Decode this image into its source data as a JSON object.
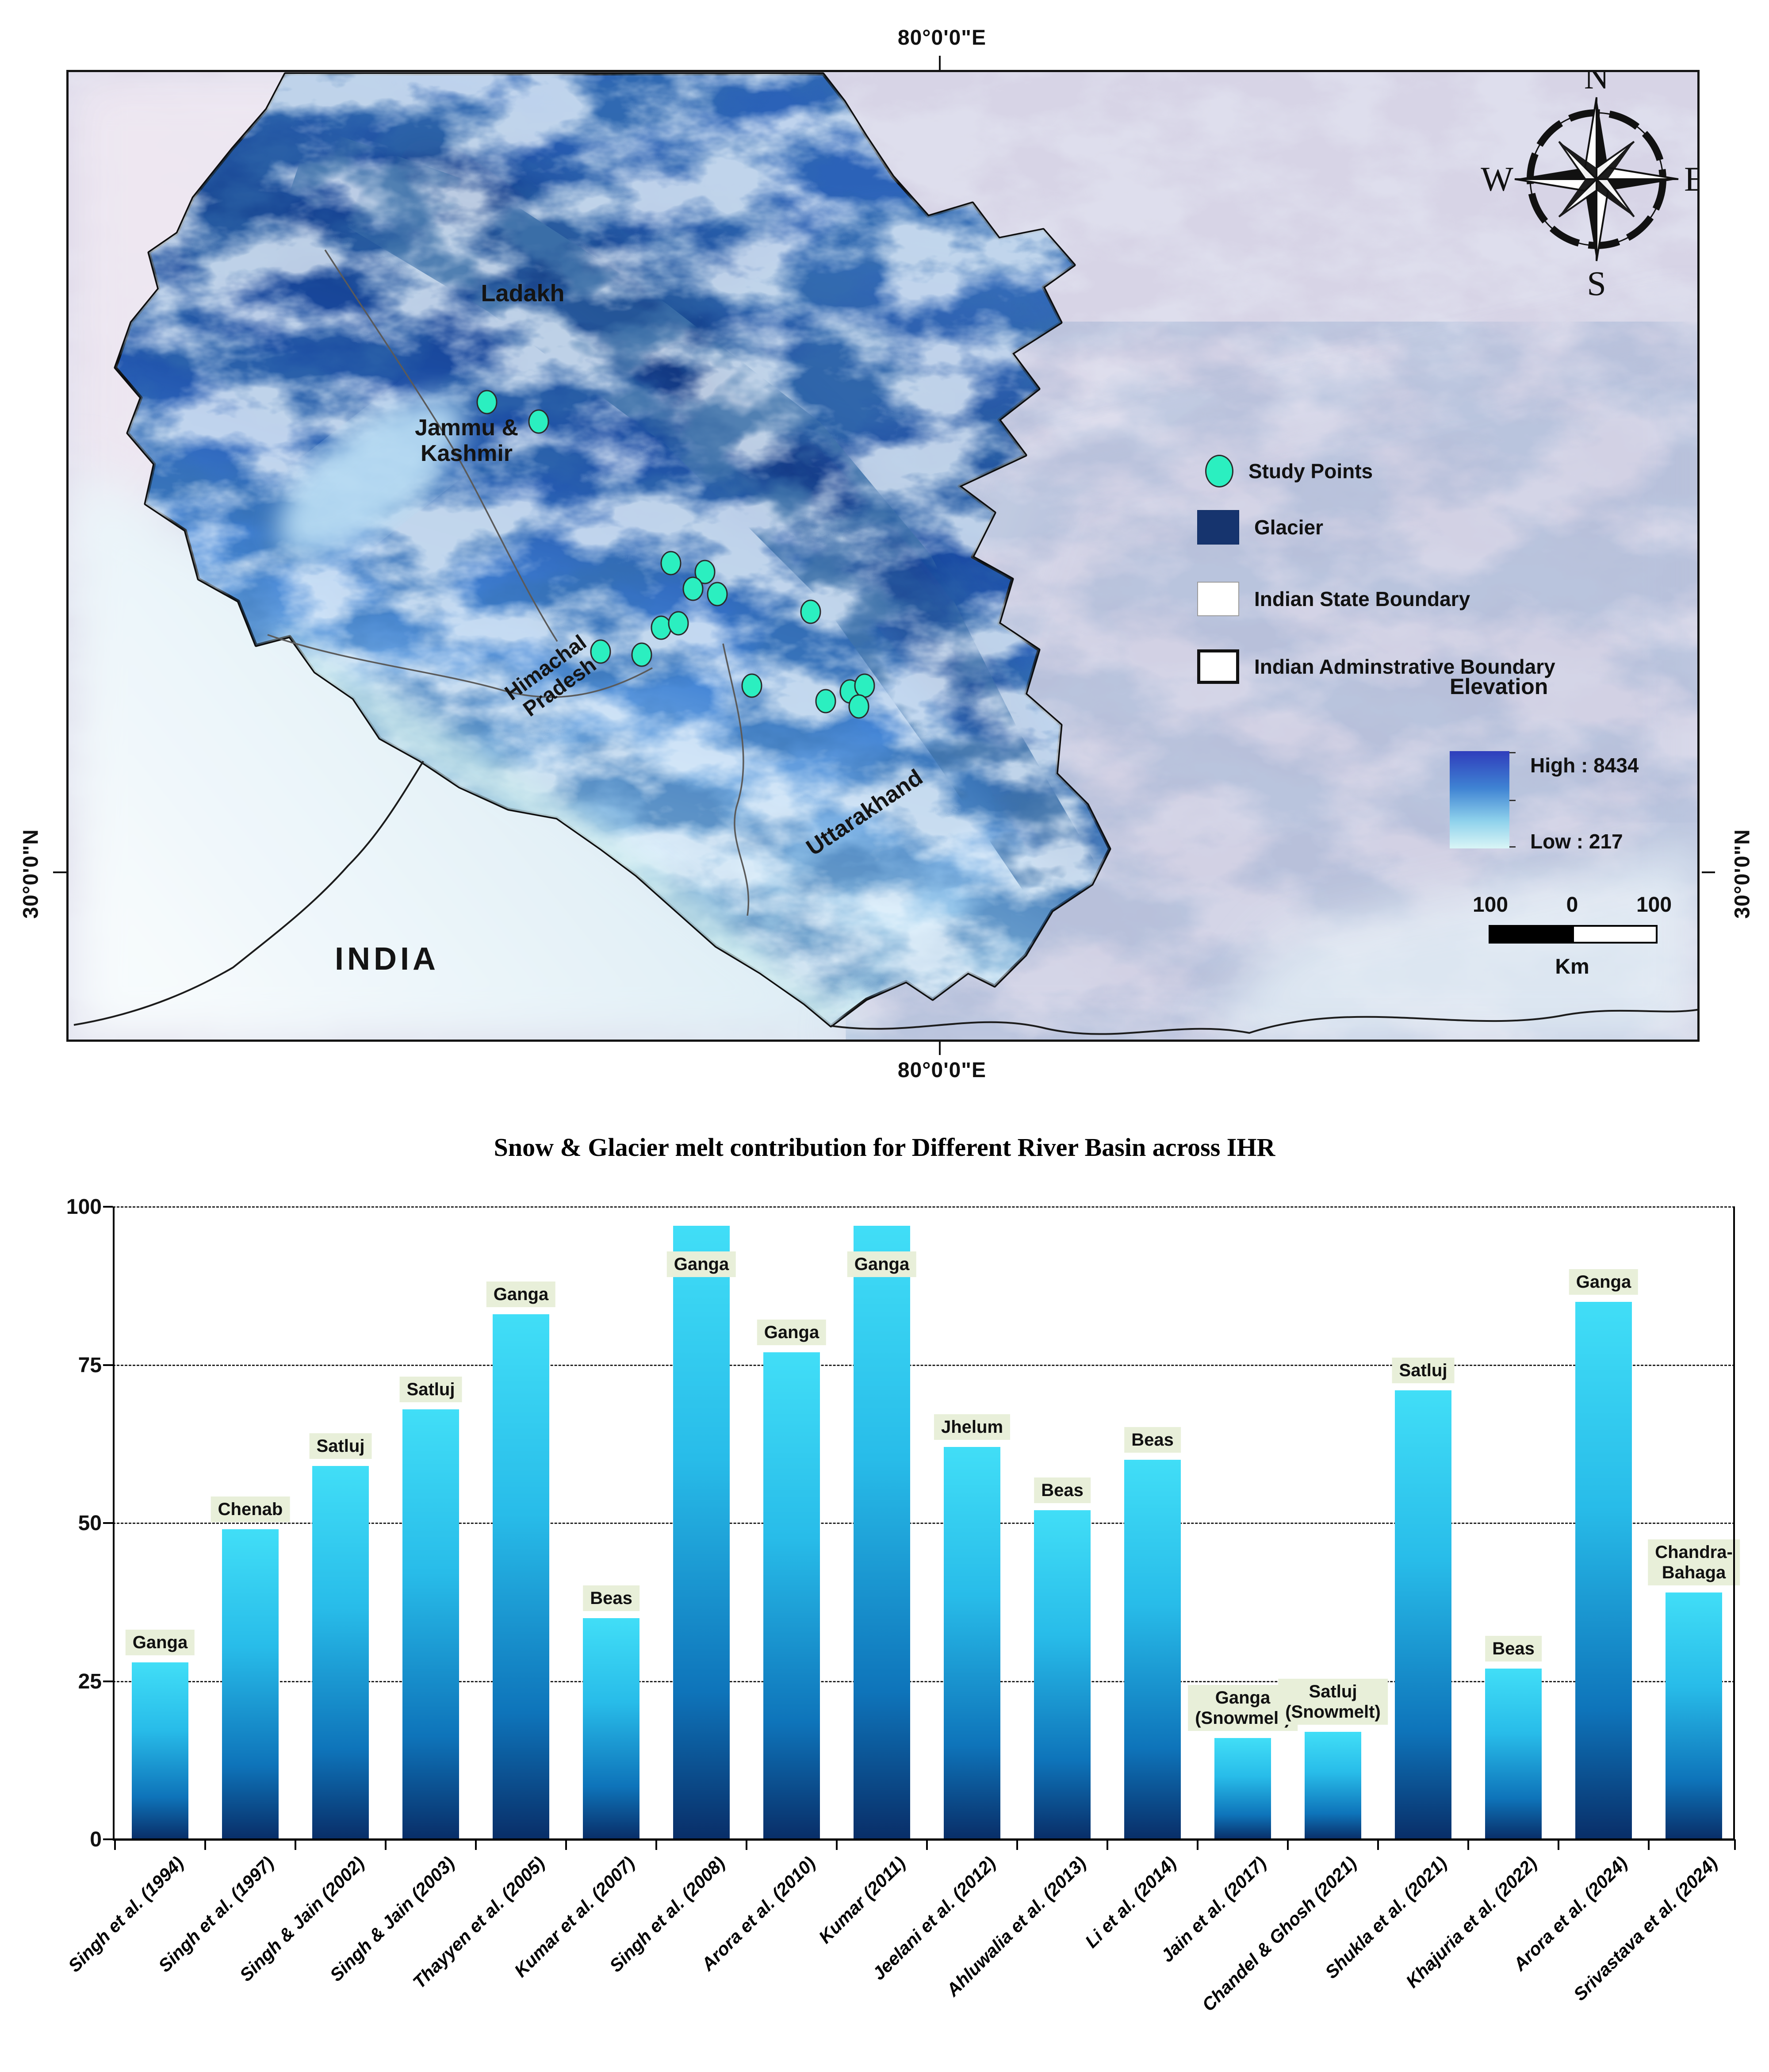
{
  "map": {
    "top_coordinate": "80°0'0\"E",
    "bottom_coordinate": "80°0'0\"E",
    "left_coordinate": "30°0'0\"N",
    "right_coordinate": "30°0'0\"N",
    "compass": {
      "n": "N",
      "e": "E",
      "s": "S",
      "w": "W"
    },
    "region_labels": {
      "ladakh": "Ladakh",
      "jammu_kashmir": "Jammu &\nKashmir",
      "himachal_pradesh": "Himachal\nPradesh",
      "uttarakhand": "Uttarakhand",
      "india": "INDIA"
    },
    "legend": {
      "items": [
        {
          "label": "Study Points",
          "marker": "circle",
          "color": "#2BEFC0"
        },
        {
          "label": "Glacier",
          "marker": "square",
          "color": "#16346E"
        },
        {
          "label": "Indian State Boundary",
          "marker": "square-outline-thin",
          "color": "#FFFFFF"
        },
        {
          "label": "Indian Adminstrative Boundary",
          "marker": "square-outline-thick",
          "color": "#FFFFFF"
        }
      ],
      "elevation": {
        "title": "Elevation",
        "high_label": "High : 8434",
        "low_label": "Low : 217"
      },
      "scalebar": {
        "left": "100",
        "middle": "0",
        "right": "100",
        "unit": "Km"
      }
    },
    "study_point_color": "#2BEFC0",
    "study_points": [
      [
        1096,
        904
      ],
      [
        1213,
        948
      ],
      [
        1512,
        1268
      ],
      [
        1589,
        1288
      ],
      [
        1562,
        1326
      ],
      [
        1617,
        1338
      ],
      [
        1828,
        1378
      ],
      [
        1490,
        1414
      ],
      [
        1529,
        1404
      ],
      [
        1353,
        1468
      ],
      [
        1446,
        1475
      ],
      [
        1695,
        1545
      ],
      [
        1862,
        1580
      ],
      [
        1917,
        1558
      ],
      [
        1950,
        1545
      ],
      [
        1937,
        1592
      ]
    ]
  },
  "chart_data": {
    "type": "bar",
    "title": "Snow & Glacier melt contribution for Different River Basin across IHR",
    "categories": [
      "Singh et al.  (1994)",
      "Singh et al. (1997)",
      "Singh & Jain (2002)",
      "Singh & Jain (2003)",
      "Thayyen et al. (2005)",
      "Kumar et al. (2007)",
      "Singh et al. (2008)",
      "Arora et al. (2010)",
      "Kumar (2011)",
      "Jeelani et al. (2012)",
      "Ahluwalia et al. (2013)",
      "Li et al.  (2014)",
      "Jain et al. (2017)",
      "Chandel & Ghosh (2021)",
      "Shukla et al. (2021)",
      "Khajuria et al. (2022)",
      "Arora et al. (2024)",
      "Srivastava et al. (2024)"
    ],
    "series": [
      {
        "name": "Snow & glacier melt contribution (%)",
        "values": [
          28,
          49,
          59,
          68,
          83,
          35,
          97,
          77,
          97,
          62,
          52,
          60,
          16,
          17,
          71,
          27,
          85,
          39
        ]
      }
    ],
    "bar_labels": [
      "Ganga",
      "Chenab",
      "Satluj",
      "Satluj",
      "Ganga",
      "Beas",
      "Ganga",
      "Ganga",
      "Ganga",
      "Jhelum",
      "Beas",
      "Beas",
      "Ganga\n(Snowmelt)",
      "Satluj\n(Snowmelt)",
      "Satluj",
      "Beas",
      "Ganga",
      "Chandra-\nBahaga"
    ],
    "xlabel": "",
    "ylabel": "",
    "yticks": [
      0,
      25,
      50,
      75,
      100
    ],
    "ylim": [
      0,
      100
    ],
    "grid": "dashed-horizontal",
    "legend_position": "none",
    "bar_top_color": "#41DEF7",
    "bar_bottom_color": "#092E68",
    "label_bg_color": "#E8EFD9"
  }
}
